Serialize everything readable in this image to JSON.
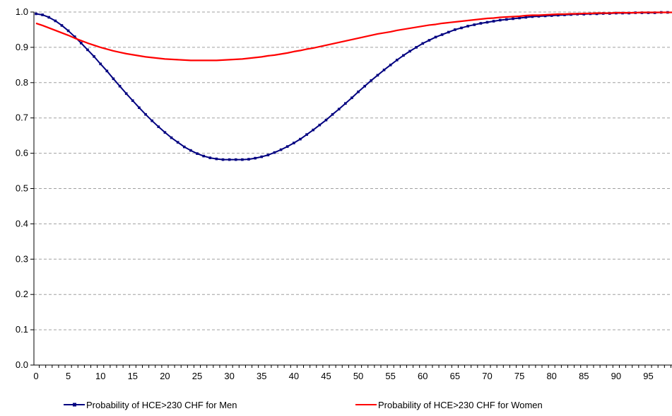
{
  "chart_data": {
    "type": "line",
    "title": "",
    "xlabel": "",
    "ylabel": "",
    "xlim": [
      0,
      99
    ],
    "ylim": [
      0,
      1
    ],
    "x_ticks": [
      0,
      5,
      10,
      15,
      20,
      25,
      30,
      35,
      40,
      45,
      50,
      55,
      60,
      65,
      70,
      75,
      80,
      85,
      90,
      95
    ],
    "x_tick_labels": [
      "0",
      "5",
      "10",
      "15",
      "20",
      "25",
      "30",
      "35",
      "40",
      "45",
      "50",
      "55",
      "60",
      "65",
      "70",
      "75",
      "80",
      "85",
      "90",
      "95"
    ],
    "y_ticks": [
      0,
      0.1,
      0.2,
      0.3,
      0.4,
      0.5,
      0.6,
      0.7,
      0.8,
      0.9,
      1.0
    ],
    "y_tick_labels": [
      "0.0",
      "0.1",
      "0.2",
      "0.3",
      "0.4",
      "0.5",
      "0.6",
      "0.7",
      "0.8",
      "0.9",
      "1.0"
    ],
    "grid": "horizontal-dashed",
    "legend_position": "bottom",
    "x": [
      0,
      1,
      2,
      3,
      4,
      5,
      6,
      7,
      8,
      9,
      10,
      11,
      12,
      13,
      14,
      15,
      16,
      17,
      18,
      19,
      20,
      21,
      22,
      23,
      24,
      25,
      26,
      27,
      28,
      29,
      30,
      31,
      32,
      33,
      34,
      35,
      36,
      37,
      38,
      39,
      40,
      41,
      42,
      43,
      44,
      45,
      46,
      47,
      48,
      49,
      50,
      51,
      52,
      53,
      54,
      55,
      56,
      57,
      58,
      59,
      60,
      61,
      62,
      63,
      64,
      65,
      66,
      67,
      68,
      69,
      70,
      71,
      72,
      73,
      74,
      75,
      76,
      77,
      78,
      79,
      80,
      81,
      82,
      83,
      84,
      85,
      86,
      87,
      88,
      89,
      90,
      91,
      92,
      93,
      94,
      95,
      96,
      97,
      98,
      99
    ],
    "series": [
      {
        "name": "Probability of HCE>230 CHF for Men",
        "color": "#000080",
        "marker": "square",
        "values": [
          0.995,
          0.992,
          0.985,
          0.975,
          0.962,
          0.947,
          0.93,
          0.912,
          0.893,
          0.874,
          0.853,
          0.833,
          0.811,
          0.79,
          0.769,
          0.749,
          0.729,
          0.71,
          0.692,
          0.675,
          0.659,
          0.644,
          0.631,
          0.618,
          0.608,
          0.599,
          0.592,
          0.587,
          0.584,
          0.582,
          0.582,
          0.582,
          0.582,
          0.583,
          0.586,
          0.59,
          0.595,
          0.602,
          0.61,
          0.619,
          0.629,
          0.64,
          0.653,
          0.666,
          0.68,
          0.694,
          0.71,
          0.725,
          0.741,
          0.757,
          0.774,
          0.79,
          0.806,
          0.821,
          0.836,
          0.85,
          0.864,
          0.877,
          0.889,
          0.9,
          0.911,
          0.92,
          0.929,
          0.936,
          0.943,
          0.95,
          0.955,
          0.96,
          0.964,
          0.968,
          0.971,
          0.974,
          0.977,
          0.979,
          0.981,
          0.983,
          0.985,
          0.987,
          0.988,
          0.989,
          0.99,
          0.991,
          0.992,
          0.993,
          0.994,
          0.994,
          0.995,
          0.995,
          0.996,
          0.996,
          0.997,
          0.997,
          0.997,
          0.998,
          0.998,
          0.998,
          0.998,
          0.999,
          0.999,
          0.999
        ]
      },
      {
        "name": "Probability of HCE>230 CHF for Women",
        "color": "#ff0000",
        "marker": "none",
        "values": [
          0.968,
          0.962,
          0.955,
          0.948,
          0.941,
          0.934,
          0.926,
          0.919,
          0.912,
          0.906,
          0.9,
          0.895,
          0.89,
          0.886,
          0.882,
          0.879,
          0.876,
          0.873,
          0.871,
          0.869,
          0.867,
          0.866,
          0.865,
          0.864,
          0.863,
          0.863,
          0.863,
          0.863,
          0.863,
          0.864,
          0.865,
          0.866,
          0.867,
          0.869,
          0.871,
          0.873,
          0.876,
          0.878,
          0.881,
          0.884,
          0.888,
          0.891,
          0.895,
          0.898,
          0.902,
          0.906,
          0.91,
          0.914,
          0.918,
          0.922,
          0.926,
          0.93,
          0.934,
          0.938,
          0.941,
          0.944,
          0.948,
          0.951,
          0.954,
          0.957,
          0.96,
          0.963,
          0.965,
          0.968,
          0.97,
          0.972,
          0.974,
          0.976,
          0.978,
          0.98,
          0.982,
          0.983,
          0.985,
          0.986,
          0.987,
          0.988,
          0.99,
          0.991,
          0.991,
          0.992,
          0.993,
          0.994,
          0.994,
          0.995,
          0.995,
          0.996,
          0.996,
          0.997,
          0.997,
          0.997,
          0.998,
          0.998,
          0.998,
          0.998,
          0.999,
          0.999,
          0.999,
          0.999,
          0.999,
          0.999
        ]
      }
    ]
  }
}
